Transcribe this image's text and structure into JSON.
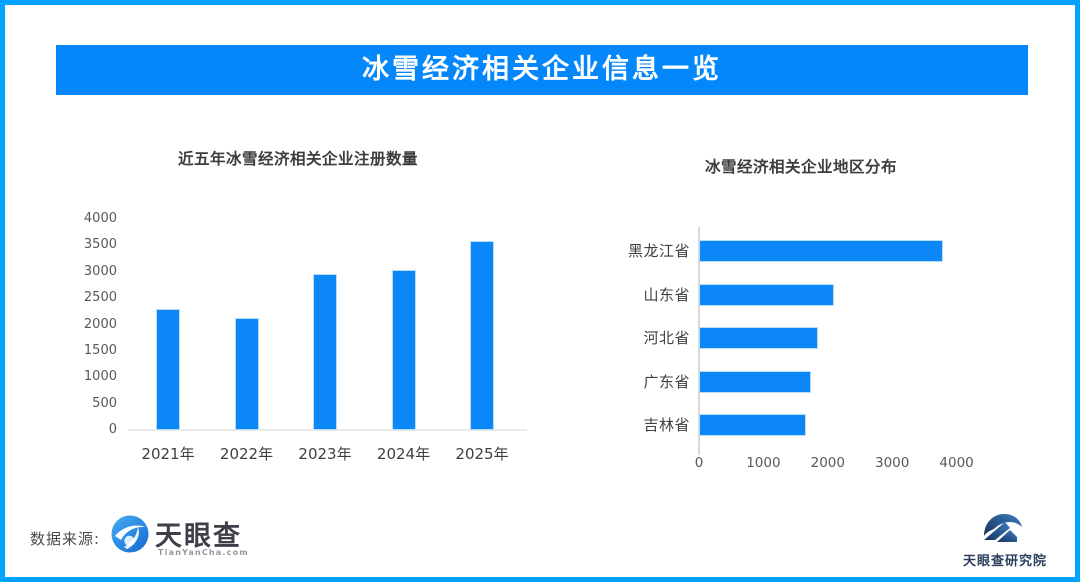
{
  "page": {
    "border_color": "#00a3ff",
    "background": "#ffffff"
  },
  "header": {
    "title": "冰雪经济相关企业信息一览",
    "background": "#0487fa",
    "text_color": "#ffffff"
  },
  "chart_data": [
    {
      "type": "bar",
      "orientation": "vertical",
      "title": "近五年冰雪经济相关企业注册数量",
      "categories": [
        "2021年",
        "2022年",
        "2023年",
        "2024年",
        "2025年"
      ],
      "values": [
        2300,
        2120,
        2950,
        3040,
        3590
      ],
      "ylim": [
        0,
        4000
      ],
      "yticks": [
        0,
        500,
        1000,
        1500,
        2000,
        2500,
        3000,
        3500,
        4000
      ],
      "bar_color": "#0b87f8",
      "grid": false,
      "xlabel": "",
      "ylabel": ""
    },
    {
      "type": "bar",
      "orientation": "horizontal",
      "title": "冰雪经济相关企业地区分布",
      "categories": [
        "黑龙江省",
        "山东省",
        "河北省",
        "广东省",
        "吉林省"
      ],
      "values": [
        3790,
        2090,
        1850,
        1740,
        1660
      ],
      "xlim": [
        0,
        4000
      ],
      "xticks": [
        0,
        1000,
        2000,
        3000,
        4000
      ],
      "bar_color": "#0b87f8",
      "grid": false,
      "xlabel": "",
      "ylabel": ""
    }
  ],
  "footer": {
    "source_label": "数据来源:",
    "tyc_logo_text": "天眼查",
    "tyc_logo_sub": "TianYanCha.com",
    "research_logo_text": "天眼查研究院",
    "logo_blue": "#2e86dd",
    "logo_dark_blue": "#1c3a63"
  }
}
